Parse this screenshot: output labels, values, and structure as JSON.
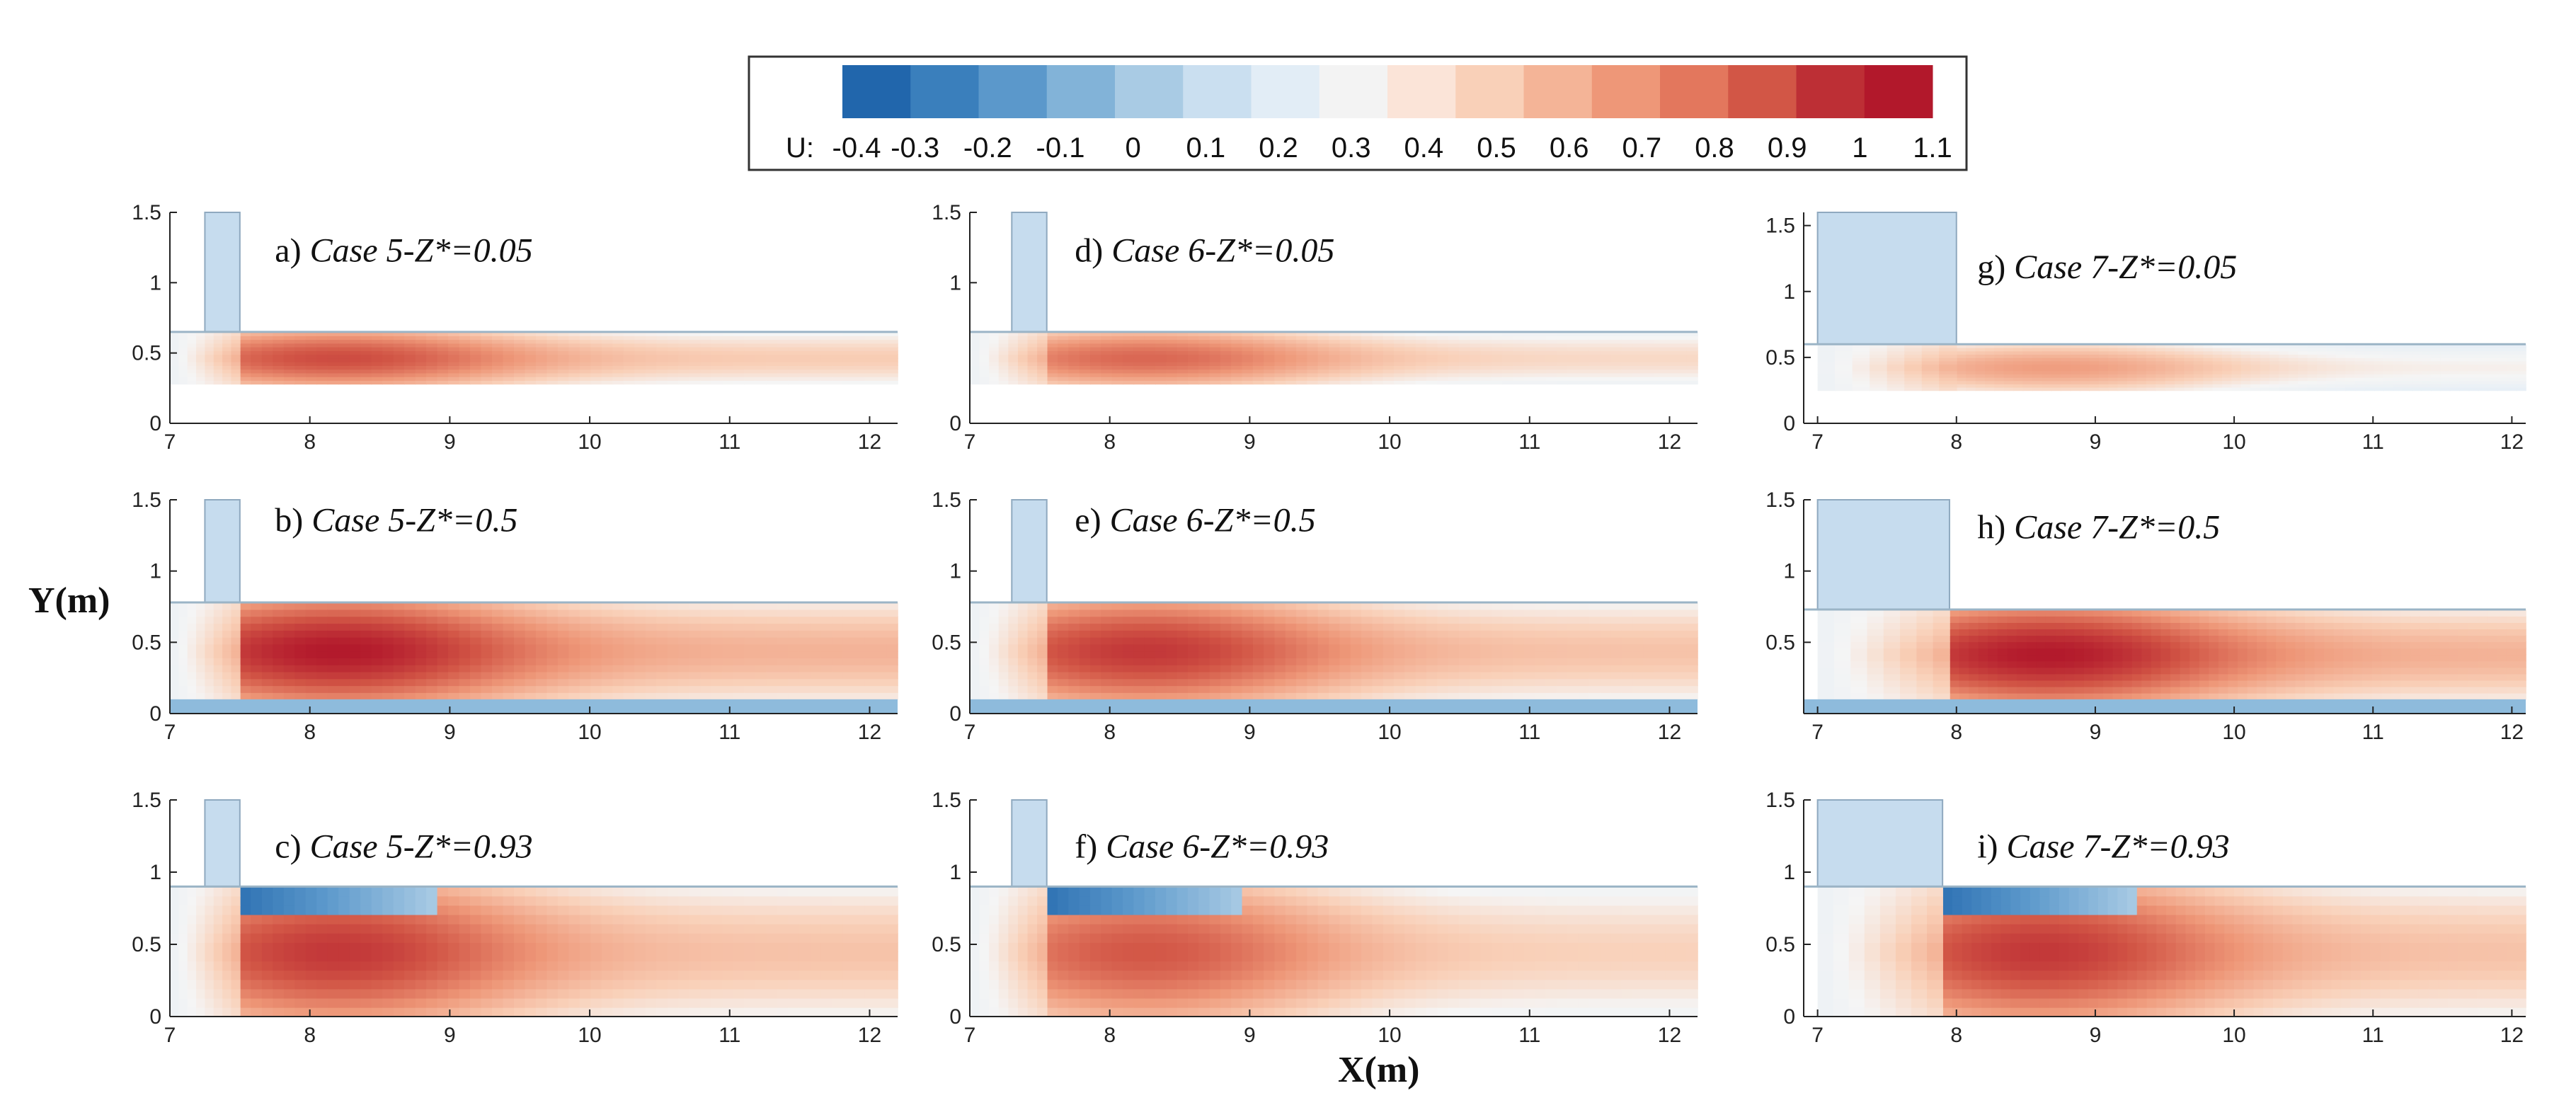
{
  "chart_data": {
    "type": "heatmap",
    "xlabel": "X(m)",
    "ylabel": "Y(m)",
    "colorbar": {
      "title": "U:",
      "ticks": [
        "-0.4",
        "-0.3",
        "-0.2",
        "-0.1",
        "0",
        "0.1",
        "0.2",
        "0.3",
        "0.4",
        "0.5",
        "0.6",
        "0.7",
        "0.8",
        "0.9",
        "1",
        "1.1"
      ],
      "colors": [
        "#2166ac",
        "#3a7fbc",
        "#5b98cb",
        "#82b3d8",
        "#a9cbe4",
        "#cadff0",
        "#e2edf6",
        "#f3f3f3",
        "#fbe4d8",
        "#f9d0b8",
        "#f4b497",
        "#ee9778",
        "#e3775d",
        "#d25646",
        "#bd2f35",
        "#b2182b"
      ]
    },
    "panels": [
      {
        "id": "a",
        "label": "a) Case 5-Z*=0.05",
        "case": 5,
        "z": 0.05,
        "xlim": [
          7,
          12.2
        ],
        "ylim": [
          0,
          1.5
        ],
        "xticks": [
          "7",
          "8",
          "9",
          "10",
          "11",
          "12"
        ],
        "yticks": [
          "0",
          "0.5",
          "1",
          "1.5"
        ],
        "gate_x": [
          7.25,
          7.5
        ],
        "channel_y": [
          0.28,
          0.65
        ],
        "peak_u": 1.1
      },
      {
        "id": "b",
        "label": "b) Case 5-Z*=0.5",
        "case": 5,
        "z": 0.5,
        "xlim": [
          7,
          12.2
        ],
        "ylim": [
          0,
          1.5
        ],
        "xticks": [
          "7",
          "8",
          "9",
          "10",
          "11",
          "12"
        ],
        "yticks": [
          "0",
          "0.5",
          "1",
          "1.5"
        ],
        "gate_x": [
          7.25,
          7.5
        ],
        "channel_y": [
          0.1,
          0.78
        ],
        "peak_u": 1.1
      },
      {
        "id": "c",
        "label": "c) Case 5-Z*=0.93",
        "case": 5,
        "z": 0.93,
        "xlim": [
          7,
          12.2
        ],
        "ylim": [
          0,
          1.5
        ],
        "xticks": [
          "7",
          "8",
          "9",
          "10",
          "11",
          "12"
        ],
        "yticks": [
          "0",
          "0.5",
          "1",
          "1.5"
        ],
        "gate_x": [
          7.25,
          7.5
        ],
        "channel_y": [
          0.0,
          0.9
        ],
        "peak_u": 1.0
      },
      {
        "id": "d",
        "label": "d) Case 6-Z*=0.05",
        "case": 6,
        "z": 0.05,
        "xlim": [
          7,
          12.2
        ],
        "ylim": [
          0,
          1.5
        ],
        "xticks": [
          "7",
          "8",
          "9",
          "10",
          "11",
          "12"
        ],
        "yticks": [
          "0",
          "1",
          "1.5"
        ],
        "gate_x": [
          7.3,
          7.55
        ],
        "channel_y": [
          0.28,
          0.65
        ],
        "peak_u": 1.0
      },
      {
        "id": "e",
        "label": "e) Case 6-Z*=0.5",
        "case": 6,
        "z": 0.5,
        "xlim": [
          7,
          12.2
        ],
        "ylim": [
          0,
          1.5
        ],
        "xticks": [
          "7",
          "8",
          "9",
          "10",
          "11",
          "12"
        ],
        "yticks": [
          "0",
          "0.5",
          "1",
          "1.5"
        ],
        "gate_x": [
          7.3,
          7.55
        ],
        "channel_y": [
          0.1,
          0.78
        ],
        "peak_u": 1.0
      },
      {
        "id": "f",
        "label": "f) Case 6-Z*=0.93",
        "case": 6,
        "z": 0.93,
        "xlim": [
          7,
          12.2
        ],
        "ylim": [
          0,
          1.5
        ],
        "xticks": [
          "7",
          "8",
          "9",
          "10",
          "11",
          "12"
        ],
        "yticks": [
          "0",
          "0.5",
          "1",
          "1.5"
        ],
        "gate_x": [
          7.3,
          7.55
        ],
        "channel_y": [
          0.0,
          0.9
        ],
        "peak_u": 0.9
      },
      {
        "id": "g",
        "label": "g) Case 7-Z*=0.05",
        "case": 7,
        "z": 0.05,
        "xlim": [
          6.9,
          12.1
        ],
        "ylim": [
          0,
          1.6
        ],
        "xticks": [
          "7",
          "8",
          "9",
          "10",
          "11",
          "12"
        ],
        "yticks": [
          "0",
          "0.5",
          "1",
          "1.5"
        ],
        "gate_x": [
          7.0,
          8.0
        ],
        "channel_y": [
          0.25,
          0.6
        ],
        "peak_u": 0.8
      },
      {
        "id": "h",
        "label": "h) Case 7-Z*=0.5",
        "case": 7,
        "z": 0.5,
        "xlim": [
          6.9,
          12.1
        ],
        "ylim": [
          0,
          1.5
        ],
        "xticks": [
          "7",
          "8",
          "9",
          "10",
          "11",
          "12"
        ],
        "yticks": [
          "0.5",
          "1",
          "1.5"
        ],
        "gate_x": [
          7.0,
          7.95
        ],
        "channel_y": [
          0.1,
          0.73
        ],
        "peak_u": 1.1
      },
      {
        "id": "i",
        "label": "i) Case 7-Z*=0.93",
        "case": 7,
        "z": 0.93,
        "xlim": [
          6.9,
          12.1
        ],
        "ylim": [
          0,
          1.5
        ],
        "xticks": [
          "7",
          "8",
          "9",
          "10",
          "11",
          "12"
        ],
        "yticks": [
          "0",
          "0.5",
          "1",
          "1.5"
        ],
        "gate_x": [
          7.0,
          7.9
        ],
        "channel_y": [
          0.0,
          0.9
        ],
        "peak_u": 1.0
      }
    ]
  }
}
